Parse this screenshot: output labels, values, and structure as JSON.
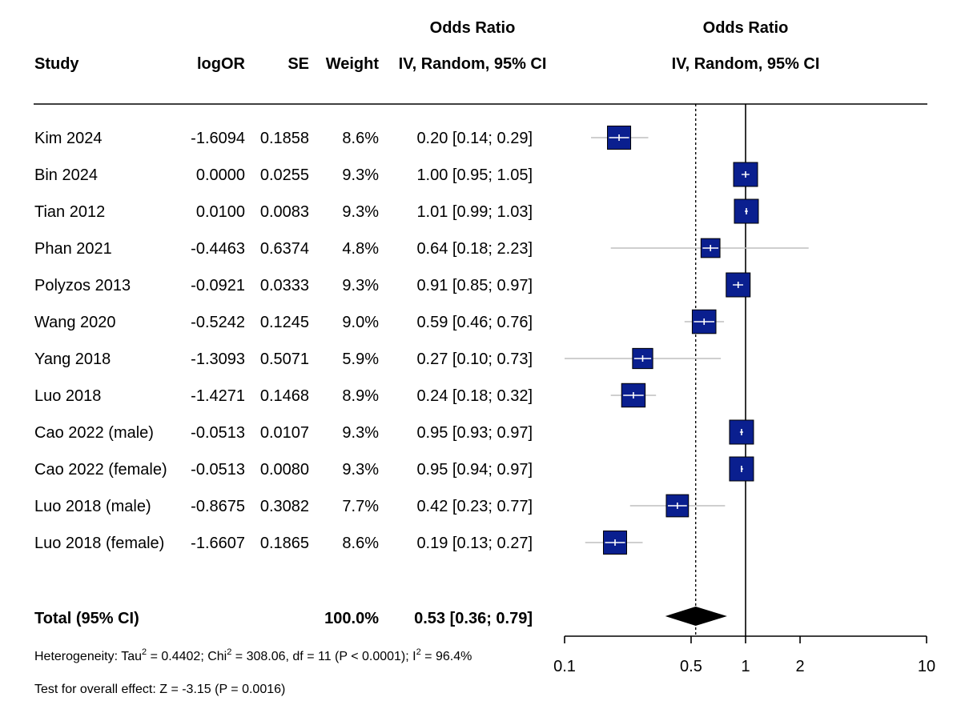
{
  "header": {
    "study": "Study",
    "logor": "logOR",
    "se": "SE",
    "weight": "Weight",
    "or_title": "Odds Ratio",
    "or_method": "IV, Random, 95% CI",
    "plot_title": "Odds Ratio",
    "plot_method": "IV, Random, 95% CI"
  },
  "chart_data": {
    "type": "forest",
    "x_scale": "log",
    "xlim": [
      0.1,
      10
    ],
    "x_ticks": [
      "0.1",
      "0.5",
      "1",
      "2",
      "10"
    ],
    "reference_line": 1,
    "pooled_line": 0.53,
    "studies": [
      {
        "study": "Kim 2024",
        "logOR": "-1.6094",
        "SE": "0.1858",
        "weight": "8.6%",
        "ci_text": "0.20 [0.14; 0.29]",
        "or": 0.2,
        "lower": 0.14,
        "upper": 0.29,
        "weight_value": 8.6
      },
      {
        "study": "Bin 2024",
        "logOR": "0.0000",
        "SE": "0.0255",
        "weight": "9.3%",
        "ci_text": "1.00 [0.95; 1.05]",
        "or": 1.0,
        "lower": 0.95,
        "upper": 1.05,
        "weight_value": 9.3
      },
      {
        "study": "Tian 2012",
        "logOR": "0.0100",
        "SE": "0.0083",
        "weight": "9.3%",
        "ci_text": "1.01 [0.99; 1.03]",
        "or": 1.01,
        "lower": 0.99,
        "upper": 1.03,
        "weight_value": 9.3
      },
      {
        "study": "Phan 2021",
        "logOR": "-0.4463",
        "SE": "0.6374",
        "weight": "4.8%",
        "ci_text": "0.64 [0.18; 2.23]",
        "or": 0.64,
        "lower": 0.18,
        "upper": 2.23,
        "weight_value": 4.8
      },
      {
        "study": "Polyzos 2013",
        "logOR": "-0.0921",
        "SE": "0.0333",
        "weight": "9.3%",
        "ci_text": "0.91 [0.85; 0.97]",
        "or": 0.91,
        "lower": 0.85,
        "upper": 0.97,
        "weight_value": 9.3
      },
      {
        "study": "Wang 2020",
        "logOR": "-0.5242",
        "SE": "0.1245",
        "weight": "9.0%",
        "ci_text": "0.59 [0.46; 0.76]",
        "or": 0.59,
        "lower": 0.46,
        "upper": 0.76,
        "weight_value": 9.0
      },
      {
        "study": "Yang 2018",
        "logOR": "-1.3093",
        "SE": "0.5071",
        "weight": "5.9%",
        "ci_text": "0.27 [0.10; 0.73]",
        "or": 0.27,
        "lower": 0.1,
        "upper": 0.73,
        "weight_value": 5.9
      },
      {
        "study": "Luo 2018",
        "logOR": "-1.4271",
        "SE": "0.1468",
        "weight": "8.9%",
        "ci_text": "0.24 [0.18; 0.32]",
        "or": 0.24,
        "lower": 0.18,
        "upper": 0.32,
        "weight_value": 8.9
      },
      {
        "study": "Cao 2022 (male)",
        "logOR": "-0.0513",
        "SE": "0.0107",
        "weight": "9.3%",
        "ci_text": "0.95 [0.93; 0.97]",
        "or": 0.95,
        "lower": 0.93,
        "upper": 0.97,
        "weight_value": 9.3
      },
      {
        "study": "Cao 2022 (female)",
        "logOR": "-0.0513",
        "SE": "0.0080",
        "weight": "9.3%",
        "ci_text": "0.95 [0.94; 0.97]",
        "or": 0.95,
        "lower": 0.94,
        "upper": 0.97,
        "weight_value": 9.3
      },
      {
        "study": "Luo 2018 (male)",
        "logOR": "-0.8675",
        "SE": "0.3082",
        "weight": "7.7%",
        "ci_text": "0.42 [0.23; 0.77]",
        "or": 0.42,
        "lower": 0.23,
        "upper": 0.77,
        "weight_value": 7.7
      },
      {
        "study": "Luo 2018 (female)",
        "logOR": "-1.6607",
        "SE": "0.1865",
        "weight": "8.6%",
        "ci_text": "0.19 [0.13; 0.27]",
        "or": 0.19,
        "lower": 0.13,
        "upper": 0.27,
        "weight_value": 8.6
      }
    ],
    "total": {
      "label": "Total (95% CI)",
      "weight": "100.0%",
      "ci_text": "0.53 [0.36; 0.79]",
      "or": 0.53,
      "lower": 0.36,
      "upper": 0.79
    }
  },
  "footer": {
    "het_prefix": "Heterogeneity: Tau",
    "het_sup1": "2",
    "het_mid1": " = 0.4402; Chi",
    "het_sup2": "2",
    "het_mid2": " = 308.06, df = 11 (P < 0.0001); I",
    "het_sup3": "2",
    "het_end": " = 96.4%",
    "overall": "Test for overall effect: Z = -3.15 (P = 0.0016)"
  },
  "colors": {
    "box_fill": "#0a1f8f",
    "box_stroke": "#000000",
    "ci_line": "#bfbfbf",
    "inner_mark": "#ffffff",
    "diamond": "#000000"
  }
}
